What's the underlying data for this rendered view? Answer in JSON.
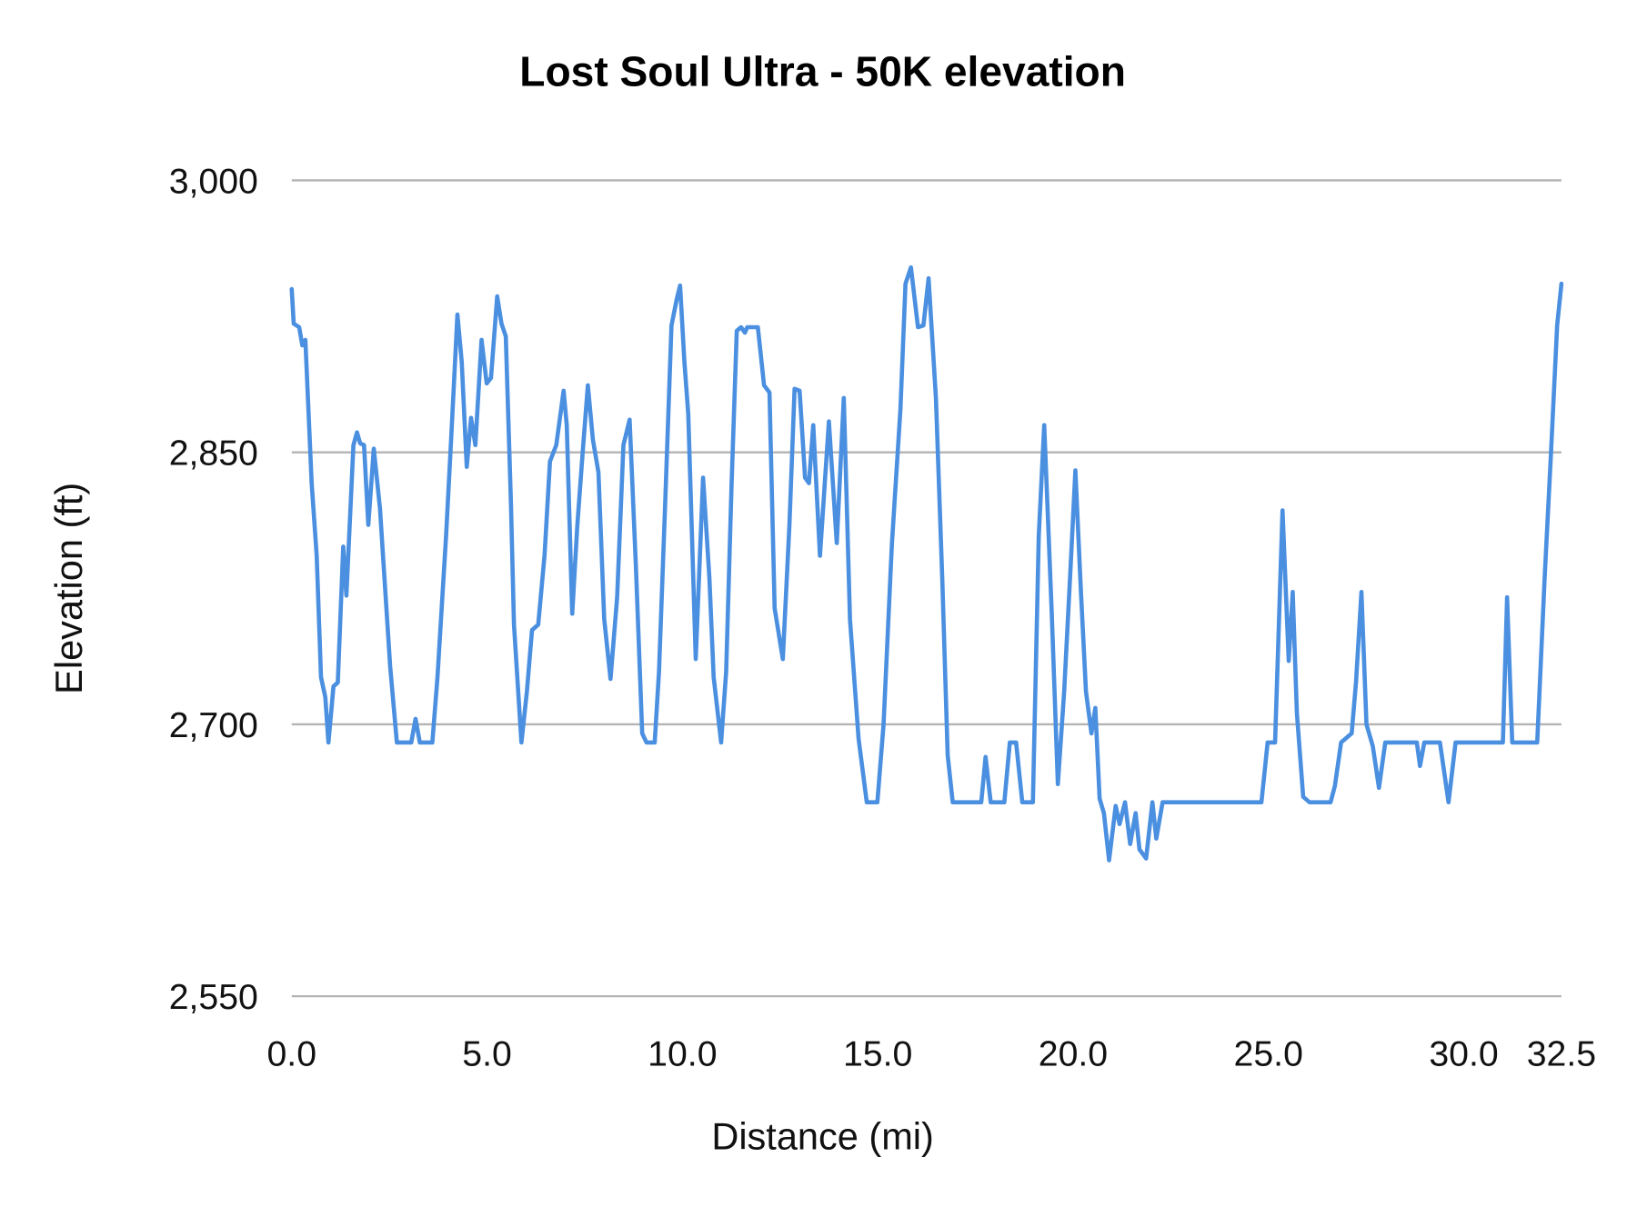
{
  "chart_data": {
    "type": "line",
    "title": "Lost Soul Ultra - 50K elevation",
    "xlabel": "Distance (mi)",
    "ylabel": "Elevation (ft)",
    "xlim": [
      0,
      32.5
    ],
    "ylim": [
      2550,
      3000
    ],
    "x_ticks": [
      "0.0",
      "5.0",
      "10.0",
      "15.0",
      "20.0",
      "25.0",
      "30.0",
      "32.5"
    ],
    "x_tick_values": [
      0,
      5,
      10,
      15,
      20,
      25,
      30,
      32.5
    ],
    "y_ticks": [
      "2,550",
      "2,700",
      "2,850",
      "3,000"
    ],
    "y_tick_values": [
      2550,
      2700,
      2850,
      3000
    ],
    "grid": "horizontal",
    "legend": "none",
    "line_color": "#4a8fe0",
    "grid_color": "#b3b3b3",
    "series": [
      {
        "x": [
          0.0,
          0.05,
          0.19,
          0.27,
          0.35,
          0.51,
          0.64,
          0.75,
          0.86,
          0.94,
          1.07,
          1.18,
          1.32,
          1.4,
          1.58,
          1.67,
          1.75,
          1.85,
          1.96,
          2.1,
          2.26,
          2.52,
          2.69,
          3.06,
          3.17,
          3.28,
          3.6,
          3.73,
          3.95,
          4.08,
          4.24,
          4.35,
          4.48,
          4.59,
          4.7,
          4.86,
          4.99,
          5.1,
          5.26,
          5.37,
          5.48,
          5.61,
          5.69,
          5.88,
          6.02,
          6.15,
          6.31,
          6.47,
          6.61,
          6.77,
          6.96,
          7.04,
          7.18,
          7.31,
          7.45,
          7.58,
          7.71,
          7.85,
          8.0,
          8.16,
          8.33,
          8.49,
          8.65,
          8.81,
          8.97,
          9.08,
          9.29,
          9.4,
          9.56,
          9.72,
          9.86,
          9.94,
          10.05,
          10.15,
          10.34,
          10.53,
          10.69,
          10.8,
          10.99,
          11.12,
          11.26,
          11.39,
          11.5,
          11.6,
          11.66,
          11.93,
          12.09,
          12.23,
          12.36,
          12.57,
          12.74,
          12.87,
          13.0,
          13.14,
          13.24,
          13.35,
          13.52,
          13.75,
          13.95,
          14.13,
          14.29,
          14.51,
          14.72,
          14.99,
          15.15,
          15.36,
          15.58,
          15.71,
          15.85,
          16.03,
          16.17,
          16.3,
          16.49,
          16.65,
          16.79,
          16.92,
          17.65,
          17.76,
          17.89,
          18.24,
          18.38,
          18.54,
          18.7,
          18.97,
          19.12,
          19.26,
          19.45,
          19.61,
          19.77,
          19.93,
          20.06,
          20.2,
          20.33,
          20.47,
          20.57,
          20.68,
          20.79,
          20.92,
          21.09,
          21.19,
          21.33,
          21.46,
          21.6,
          21.7,
          21.87,
          22.03,
          22.13,
          22.29,
          24.82,
          24.98,
          25.17,
          25.36,
          25.52,
          25.62,
          25.73,
          25.89,
          26.05,
          26.59,
          26.7,
          26.86,
          27.13,
          27.24,
          27.38,
          27.51,
          27.67,
          27.83,
          27.99,
          28.8,
          28.88,
          28.99,
          29.39,
          29.61,
          29.79,
          31.0,
          31.11,
          31.24,
          31.88,
          32.07,
          32.23,
          32.39,
          32.5
        ],
        "y": [
          2940,
          2921,
          2919,
          2909,
          2912,
          2833,
          2793,
          2726,
          2715,
          2690,
          2721,
          2723,
          2798,
          2771,
          2854,
          2861,
          2855,
          2854,
          2810,
          2852,
          2819,
          2732,
          2690,
          2690,
          2703,
          2690,
          2690,
          2726,
          2804,
          2857,
          2926,
          2900,
          2842,
          2869,
          2854,
          2912,
          2888,
          2891,
          2936,
          2921,
          2914,
          2822,
          2755,
          2690,
          2718,
          2752,
          2755,
          2793,
          2845,
          2854,
          2884,
          2865,
          2761,
          2810,
          2851,
          2887,
          2857,
          2839,
          2758,
          2725,
          2770,
          2854,
          2868,
          2787,
          2695,
          2690,
          2690,
          2729,
          2822,
          2920,
          2935,
          2942,
          2900,
          2871,
          2736,
          2836,
          2781,
          2726,
          2690,
          2729,
          2833,
          2917,
          2919,
          2916,
          2919,
          2919,
          2887,
          2883,
          2764,
          2736,
          2810,
          2885,
          2884,
          2836,
          2833,
          2865,
          2793,
          2867,
          2800,
          2880,
          2758,
          2692,
          2657,
          2657,
          2700,
          2799,
          2874,
          2943,
          2952,
          2919,
          2920,
          2946,
          2880,
          2781,
          2683,
          2657,
          2657,
          2682,
          2657,
          2657,
          2690,
          2690,
          2657,
          2657,
          2804,
          2865,
          2764,
          2667,
          2718,
          2784,
          2840,
          2773,
          2718,
          2695,
          2709,
          2659,
          2651,
          2625,
          2655,
          2645,
          2657,
          2634,
          2651,
          2631,
          2626,
          2657,
          2637,
          2657,
          2657,
          2690,
          2690,
          2818,
          2735,
          2773,
          2706,
          2660,
          2657,
          2657,
          2666,
          2690,
          2695,
          2723,
          2773,
          2700,
          2688,
          2665,
          2690,
          2690,
          2677,
          2690,
          2690,
          2657,
          2690,
          2690,
          2770,
          2690,
          2690,
          2781,
          2848,
          2920,
          2943
        ]
      }
    ]
  }
}
